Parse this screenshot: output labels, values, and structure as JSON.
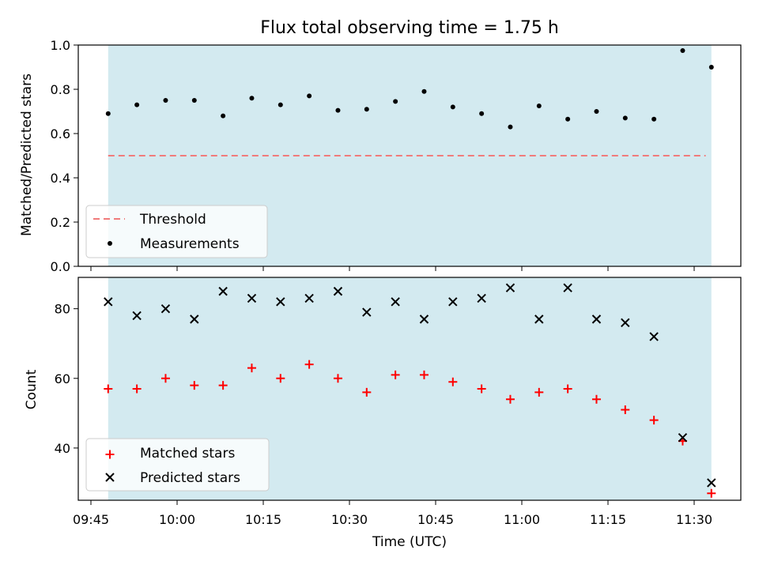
{
  "chart_data": [
    {
      "type": "scatter",
      "title": "Flux total observing time = 1.75 h",
      "ylabel": "Matched/Predicted stars",
      "xlabel": "",
      "ylim": [
        0.0,
        1.0
      ],
      "yticks": [
        "0.0",
        "0.2",
        "0.4",
        "0.6",
        "0.8",
        "1.0"
      ],
      "shaded_region": {
        "x_start": "09:48",
        "x_end": "11:33",
        "color": "#d3eaf0"
      },
      "threshold": {
        "name": "Threshold",
        "value": 0.5,
        "x_start": "09:48",
        "x_end": "11:32",
        "color": "#f07b7b",
        "style": "dashed"
      },
      "legend": {
        "position": "lower-left",
        "entries": [
          "Threshold",
          "Measurements"
        ]
      },
      "series": [
        {
          "name": "Measurements",
          "marker": "dot",
          "color": "#000000",
          "x": [
            "09:48",
            "09:53",
            "09:58",
            "10:03",
            "10:08",
            "10:13",
            "10:18",
            "10:23",
            "10:28",
            "10:33",
            "10:38",
            "10:43",
            "10:48",
            "10:53",
            "10:58",
            "11:03",
            "11:08",
            "11:13",
            "11:18",
            "11:23",
            "11:28",
            "11:33"
          ],
          "y": [
            0.69,
            0.73,
            0.75,
            0.75,
            0.68,
            0.76,
            0.73,
            0.77,
            0.705,
            0.71,
            0.745,
            0.79,
            0.72,
            0.69,
            0.63,
            0.725,
            0.665,
            0.7,
            0.67,
            0.665,
            0.975,
            0.9
          ]
        }
      ]
    },
    {
      "type": "scatter",
      "title": "",
      "ylabel": "Count",
      "xlabel": "Time (UTC)",
      "ylim": [
        25,
        89
      ],
      "yticks": [
        "40",
        "60",
        "80"
      ],
      "xticks": [
        "09:45",
        "10:00",
        "10:15",
        "10:30",
        "10:45",
        "11:00",
        "11:15",
        "11:30"
      ],
      "legend": {
        "position": "lower-left",
        "entries": [
          "Matched stars",
          "Predicted stars"
        ]
      },
      "series": [
        {
          "name": "Matched stars",
          "marker": "plus",
          "color": "#ff0000",
          "x": [
            "09:48",
            "09:53",
            "09:58",
            "10:03",
            "10:08",
            "10:13",
            "10:18",
            "10:23",
            "10:28",
            "10:33",
            "10:38",
            "10:43",
            "10:48",
            "10:53",
            "10:58",
            "11:03",
            "11:08",
            "11:13",
            "11:18",
            "11:23",
            "11:28",
            "11:33"
          ],
          "y": [
            57,
            57,
            60,
            58,
            58,
            63,
            60,
            64,
            60,
            56,
            61,
            61,
            59,
            57,
            54,
            56,
            57,
            54,
            51,
            48,
            42,
            27
          ]
        },
        {
          "name": "Predicted stars",
          "marker": "x",
          "color": "#000000",
          "x": [
            "09:48",
            "09:53",
            "09:58",
            "10:03",
            "10:08",
            "10:13",
            "10:18",
            "10:23",
            "10:28",
            "10:33",
            "10:38",
            "10:43",
            "10:48",
            "10:53",
            "10:58",
            "11:03",
            "11:08",
            "11:13",
            "11:18",
            "11:23",
            "11:28",
            "11:33"
          ],
          "y": [
            82,
            78,
            80,
            77,
            85,
            83,
            82,
            83,
            85,
            79,
            82,
            77,
            82,
            83,
            86,
            77,
            86,
            77,
            76,
            72,
            43,
            30
          ]
        }
      ]
    }
  ]
}
